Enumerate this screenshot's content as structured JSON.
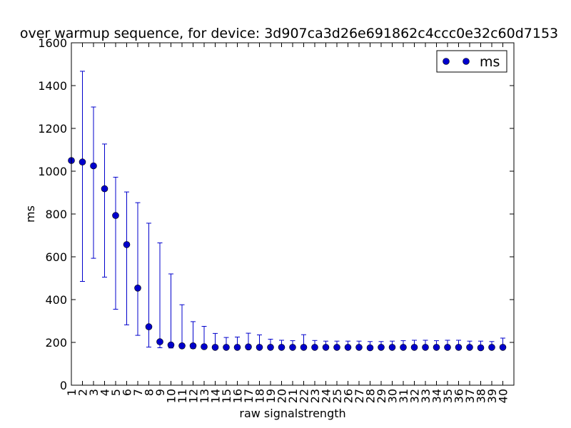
{
  "chart_data": {
    "type": "scatter",
    "title": "over warmup sequence, for device: 3d907ca3d26e691862c4ccc0e32c60d7153",
    "xlabel": "raw signalstrength",
    "ylabel": "ms",
    "ylim": [
      0,
      1600
    ],
    "y_ticks": [
      0,
      200,
      400,
      600,
      800,
      1000,
      1200,
      1400,
      1600
    ],
    "categories": [
      "1",
      "2",
      "3",
      "4",
      "5",
      "6",
      "7",
      "8",
      "9",
      "10",
      "11",
      "12",
      "13",
      "14",
      "15",
      "16",
      "17",
      "18",
      "19",
      "20",
      "21",
      "22",
      "23",
      "24",
      "25",
      "26",
      "27",
      "28",
      "29",
      "30",
      "31",
      "32",
      "33",
      "34",
      "35",
      "36",
      "37",
      "38",
      "39",
      "40"
    ],
    "grid": false,
    "legend_position": "top-right",
    "colors": {
      "series": "#0000cc"
    },
    "series": [
      {
        "name": "ms",
        "values": [
          1050,
          1043,
          1025,
          918,
          793,
          657,
          454,
          273,
          203,
          188,
          184,
          184,
          180,
          177,
          177,
          177,
          179,
          177,
          177,
          177,
          177,
          177,
          177,
          177,
          177,
          177,
          177,
          175,
          177,
          177,
          177,
          177,
          177,
          177,
          177,
          177,
          177,
          175,
          177,
          177
        ],
        "err_low": [
          null,
          485,
          593,
          505,
          355,
          282,
          233,
          178,
          175,
          174,
          174,
          172,
          172,
          172,
          172,
          172,
          172,
          172,
          172,
          172,
          172,
          172,
          172,
          172,
          172,
          172,
          172,
          172,
          172,
          172,
          172,
          172,
          172,
          172,
          172,
          172,
          172,
          172,
          172,
          172
        ],
        "err_high": [
          null,
          1467,
          1300,
          1127,
          972,
          903,
          853,
          757,
          665,
          520,
          376,
          297,
          275,
          242,
          223,
          225,
          243,
          235,
          215,
          210,
          208,
          236,
          209,
          206,
          206,
          206,
          206,
          204,
          204,
          206,
          208,
          210,
          210,
          208,
          210,
          210,
          206,
          206,
          204,
          220
        ]
      }
    ]
  }
}
